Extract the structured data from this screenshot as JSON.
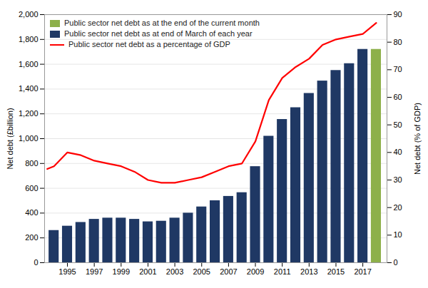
{
  "chart_data": {
    "type": "bar",
    "legend": "upper left",
    "grid": true,
    "ylabel": "Net debt (£billion)",
    "y2label": "Net debt (% of GDP)",
    "xlim": [
      1993.3,
      2018.8
    ],
    "xticks": [
      1995,
      1997,
      1999,
      2001,
      2003,
      2005,
      2007,
      2009,
      2011,
      2013,
      2015,
      2017
    ],
    "ylim": [
      0,
      2000
    ],
    "yticks": [
      0,
      200,
      400,
      600,
      800,
      {
        "value": 1000,
        "label": "1,000"
      },
      {
        "value": 1200,
        "label": "1,200"
      },
      {
        "value": 1400,
        "label": "1,400"
      },
      {
        "value": 1600,
        "label": "1,600"
      },
      {
        "value": 1800,
        "label": "1,800"
      },
      {
        "value": 2000,
        "label": "2,000"
      }
    ],
    "y2lim": [
      0,
      90
    ],
    "y2ticks": [
      0,
      10,
      20,
      30,
      40,
      50,
      60,
      70,
      80,
      90
    ],
    "series": [
      {
        "name": "Public sector net debt as at the end of the current month",
        "type": "bar",
        "color": "#8DB04A",
        "x": [
          2018
        ],
        "values": [
          1720
        ]
      },
      {
        "name": "Public sector net debt as at end of March of each year",
        "type": "bar",
        "color": "#1F3864",
        "x": [
          1994,
          1995,
          1996,
          1997,
          1998,
          1999,
          2000,
          2001,
          2002,
          2003,
          2004,
          2005,
          2006,
          2007,
          2008,
          2009,
          2010,
          2011,
          2012,
          2013,
          2014,
          2015,
          2016,
          2017
        ],
        "values": [
          260,
          295,
          325,
          350,
          360,
          360,
          350,
          330,
          335,
          360,
          400,
          450,
          500,
          535,
          565,
          775,
          1020,
          1155,
          1250,
          1365,
          1465,
          1550,
          1605,
          1720
        ]
      },
      {
        "name": "Public sector net debt as a percentage of GDP",
        "type": "line",
        "axis": "y2",
        "color": "#FF0000",
        "x": [
          1993.5,
          1994,
          1995,
          1996,
          1997,
          1998,
          1999,
          2000,
          2001,
          2002,
          2003,
          2004,
          2005,
          2006,
          2007,
          2008,
          2009,
          2010,
          2011,
          2012,
          2013,
          2014,
          2015,
          2016,
          2017,
          2018
        ],
        "values": [
          34,
          35,
          40,
          39,
          37,
          36,
          35,
          33,
          30,
          29,
          29,
          30,
          31,
          33,
          35,
          36,
          44,
          59,
          67,
          71,
          74,
          79,
          81,
          82,
          83,
          87
        ]
      }
    ]
  }
}
